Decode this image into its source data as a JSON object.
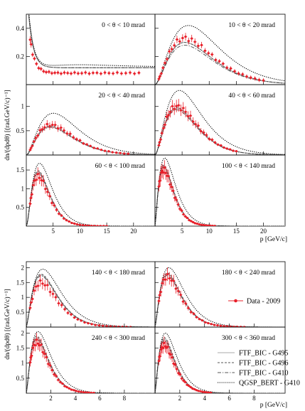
{
  "chart_data": [
    {
      "type": "line",
      "ylabel": "dn/(dpdθ) [(rad.GeV/c)⁻¹]",
      "xlabel": "p [GeV/c]",
      "xlim": [
        0,
        24
      ],
      "xticks": [
        5,
        10,
        15,
        20
      ],
      "series": [
        {
          "style": "data"
        },
        {
          "style": "solid"
        },
        {
          "style": "dashed"
        },
        {
          "style": "dashdot"
        },
        {
          "style": "dotted"
        }
      ],
      "panels": [
        {
          "title": "0 < θ < 10 mrad",
          "ylim": [
            0,
            0.5
          ],
          "yticks": [
            0.2,
            0.4
          ],
          "peak_x": 0.9,
          "mc_peak": [
            0.74,
            0.74,
            0.74,
            0.74
          ],
          "data_peak": 0.62,
          "data_xmax": 21,
          "data_min": 0.05
        },
        {
          "title": "10 < θ < 20 mrad",
          "ylim": [
            0,
            0.5
          ],
          "yticks": [
            0.2,
            0.4
          ],
          "peak_x": 5.5,
          "mc_peak": [
            0.3,
            0.3,
            0.28,
            0.42
          ],
          "data_peak": 0.33,
          "data_xmax": 20
        },
        {
          "title": "20 < θ < 40 mrad",
          "ylim": [
            0,
            1.45
          ],
          "yticks": [
            0.5,
            1
          ],
          "peak_x": 4.5,
          "mc_peak": [
            0.58,
            0.6,
            0.57,
            0.86
          ],
          "data_peak": 0.62,
          "data_xmax": 19
        },
        {
          "title": "40 < θ < 60 mrad",
          "ylim": [
            0,
            1.45
          ],
          "yticks": [
            0.5,
            1
          ],
          "peak_x": 4.0,
          "mc_peak": [
            0.96,
            0.98,
            0.93,
            1.33
          ],
          "data_peak": 1.0,
          "data_xmax": 15
        },
        {
          "title": "60 < θ < 100 mrad",
          "ylim": [
            0,
            1.9
          ],
          "yticks": [
            0.5,
            1,
            1.5
          ],
          "peak_x": 2.2,
          "mc_peak": [
            1.45,
            1.48,
            1.42,
            1.68
          ],
          "data_peak": 1.33,
          "data_xmax": 15
        },
        {
          "title": "100 < θ < 140 mrad",
          "ylim": [
            0,
            1.9
          ],
          "yticks": [
            0.5,
            1,
            1.5
          ],
          "peak_x": 1.6,
          "mc_peak": [
            1.6,
            1.63,
            1.58,
            1.82
          ],
          "data_peak": 1.5,
          "data_xmax": 11
        }
      ]
    },
    {
      "type": "line",
      "ylabel": "dn/(dpdθ) [(rad.GeV/c)⁻¹]",
      "xlabel": "p [GeV/c]",
      "xlim": [
        0,
        10.5
      ],
      "xticks": [
        2,
        4,
        6,
        8
      ],
      "legend": {
        "placement": "right",
        "entries": [
          "Data - 2009",
          "FTF_BIC - G495",
          "FTF_BIC - G496",
          "FTF_BIC - G410",
          "QGSP_BERT - G410"
        ]
      },
      "panels": [
        {
          "title": "140 < θ < 180 mrad",
          "ylim": [
            0,
            2.2
          ],
          "yticks": [
            0.5,
            1,
            1.5,
            2
          ],
          "peak_x": 1.2,
          "mc_peak": [
            1.75,
            1.78,
            1.72,
            1.95
          ],
          "data_peak": 1.5,
          "data_xmax": 8.5
        },
        {
          "title": "180 < θ < 240 mrad",
          "ylim": [
            0,
            2.2
          ],
          "yticks": [
            0.5,
            1,
            1.5,
            2
          ],
          "peak_x": 1.0,
          "mc_peak": [
            1.78,
            1.82,
            1.74,
            2.0
          ],
          "data_peak": 1.7,
          "data_xmax": 7.2
        },
        {
          "title": "240 < θ < 300 mrad",
          "ylim": [
            0,
            2.2
          ],
          "yticks": [
            0.5,
            1,
            1.5,
            2
          ],
          "peak_x": 0.85,
          "mc_peak": [
            1.85,
            1.9,
            1.8,
            2.05
          ],
          "data_peak": 1.7,
          "data_xmax": 5.5
        },
        {
          "title": "300 < θ < 360 mrad",
          "ylim": [
            0,
            2.2
          ],
          "yticks": [
            0.5,
            1,
            1.5,
            2
          ],
          "peak_x": 0.75,
          "mc_peak": [
            1.8,
            1.85,
            1.75,
            2.0
          ],
          "data_peak": 1.6,
          "data_xmax": 4.5
        }
      ]
    }
  ]
}
